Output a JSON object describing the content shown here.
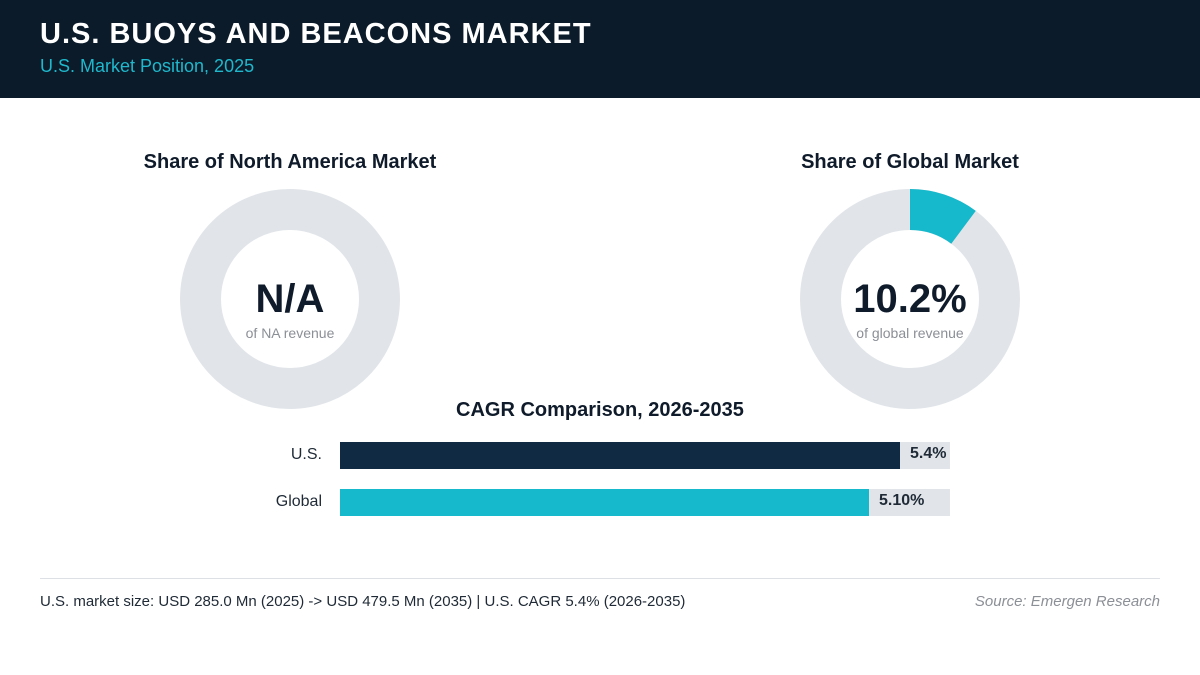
{
  "header": {
    "title": "U.S. BUOYS AND BEACONS MARKET",
    "subtitle": "U.S. Market Position, 2025"
  },
  "colors": {
    "header_bg": "#0b1b2a",
    "accent_cyan": "#16b8cb",
    "navy": "#0f2a42",
    "track_gray": "#e1e5e9"
  },
  "chart_data": [
    {
      "type": "pie",
      "title": "Share of North America Market",
      "center_value": "N/A",
      "center_caption": "of NA revenue",
      "share_percent": null
    },
    {
      "type": "pie",
      "title": "Share of Global Market",
      "center_value": "10.2%",
      "center_caption": "of global revenue",
      "share_percent": 10.2
    },
    {
      "type": "bar",
      "orientation": "horizontal",
      "title": "CAGR Comparison, 2026-2035",
      "categories": [
        "U.S.",
        "Global"
      ],
      "values": [
        5.4,
        5.1
      ],
      "value_labels": [
        "5.4%",
        "5.10%"
      ],
      "xlim": [
        0,
        5.88
      ]
    }
  ],
  "footer": {
    "note": "U.S. market size: USD 285.0 Mn (2025) -> USD 479.5 Mn (2035)  |  U.S. CAGR 5.4% (2026-2035)",
    "source": "Source: Emergen Research"
  }
}
